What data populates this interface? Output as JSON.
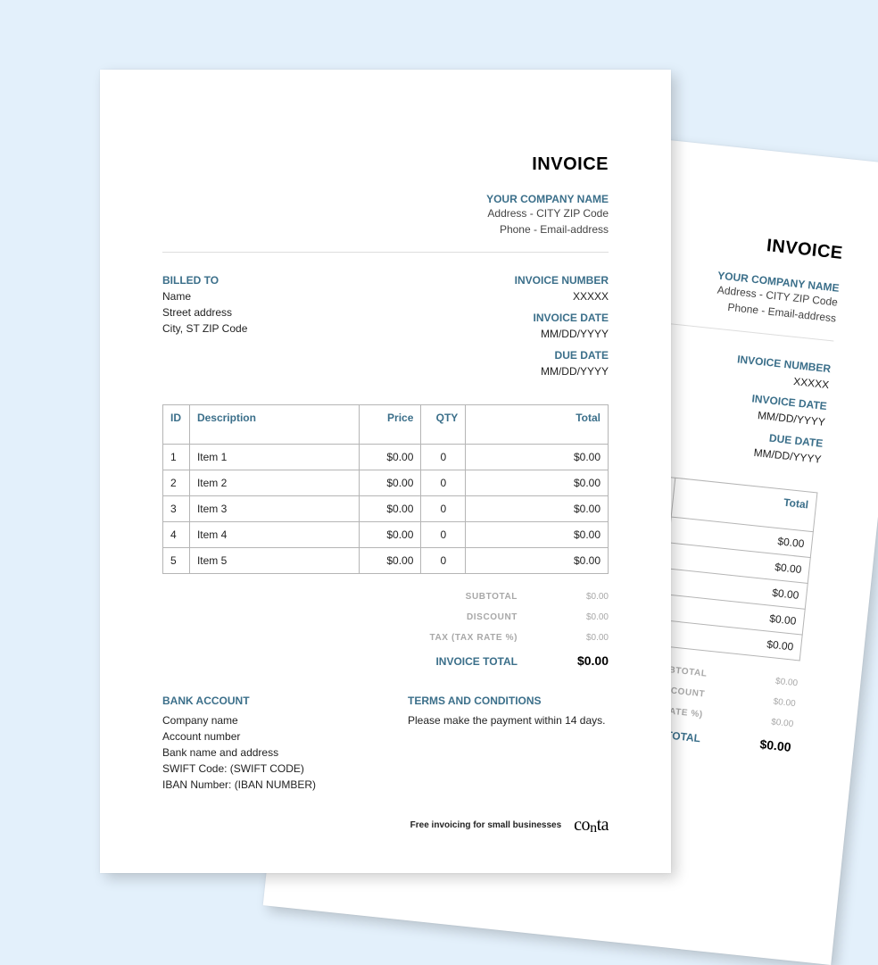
{
  "colors": {
    "background": "#e3f0fb",
    "paper": "#ffffff",
    "accent": "#3b6f8a",
    "text": "#222222",
    "mutedText": "#a8a8a8",
    "tableBorder": "#b5b5b5",
    "divider": "#dddddd",
    "pageShadow": "rgba(0,0,0,0.18)"
  },
  "title": "INVOICE",
  "company": {
    "heading": "YOUR COMPANY NAME",
    "line1": "Address - CITY ZIP Code",
    "line2": "Phone - Email-address"
  },
  "billedTo": {
    "heading": "BILLED TO",
    "name": "Name",
    "street": "Street address",
    "city": "City, ST ZIP Code"
  },
  "meta": {
    "invoiceNumberLabel": "INVOICE NUMBER",
    "invoiceNumber": "XXXXX",
    "invoiceDateLabel": "INVOICE DATE",
    "invoiceDate": "MM/DD/YYYY",
    "dueDateLabel": "DUE DATE",
    "dueDate": "MM/DD/YYYY"
  },
  "table": {
    "columns": {
      "id": "ID",
      "description": "Description",
      "price": "Price",
      "qty": "QTY",
      "total": "Total"
    },
    "columnWidths": {
      "id": "6%",
      "description": "38%",
      "price": "14%",
      "qty": "10%",
      "total": "32%"
    },
    "columnAlign": {
      "id": "left",
      "description": "left",
      "price": "right",
      "qty": "center",
      "total": "right"
    },
    "rows": [
      {
        "id": "1",
        "description": "Item 1",
        "price": "$0.00",
        "qty": "0",
        "total": "$0.00"
      },
      {
        "id": "2",
        "description": "Item 2",
        "price": "$0.00",
        "qty": "0",
        "total": "$0.00"
      },
      {
        "id": "3",
        "description": "Item 3",
        "price": "$0.00",
        "qty": "0",
        "total": "$0.00"
      },
      {
        "id": "4",
        "description": "Item 4",
        "price": "$0.00",
        "qty": "0",
        "total": "$0.00"
      },
      {
        "id": "5",
        "description": "Item 5",
        "price": "$0.00",
        "qty": "0",
        "total": "$0.00"
      }
    ]
  },
  "totals": {
    "subtotalLabel": "SUBTOTAL",
    "subtotal": "$0.00",
    "discountLabel": "DISCOUNT",
    "discount": "$0.00",
    "taxLabel": "TAX (TAX RATE %)",
    "tax": "$0.00",
    "grandLabel": "INVOICE TOTAL",
    "grand": "$0.00"
  },
  "bank": {
    "heading": "BANK ACCOUNT",
    "companyName": "Company name",
    "accountNumber": "Account number",
    "bankNameAddress": "Bank name and address",
    "swift": "SWIFT Code: (SWIFT CODE)",
    "iban": "IBAN Number: (IBAN NUMBER)"
  },
  "terms": {
    "heading": "TERMS AND CONDITIONS",
    "body": "Please make the payment within 14 days."
  },
  "brand": {
    "tagline": "Free invoicing for small businesses",
    "logo": "conta"
  }
}
